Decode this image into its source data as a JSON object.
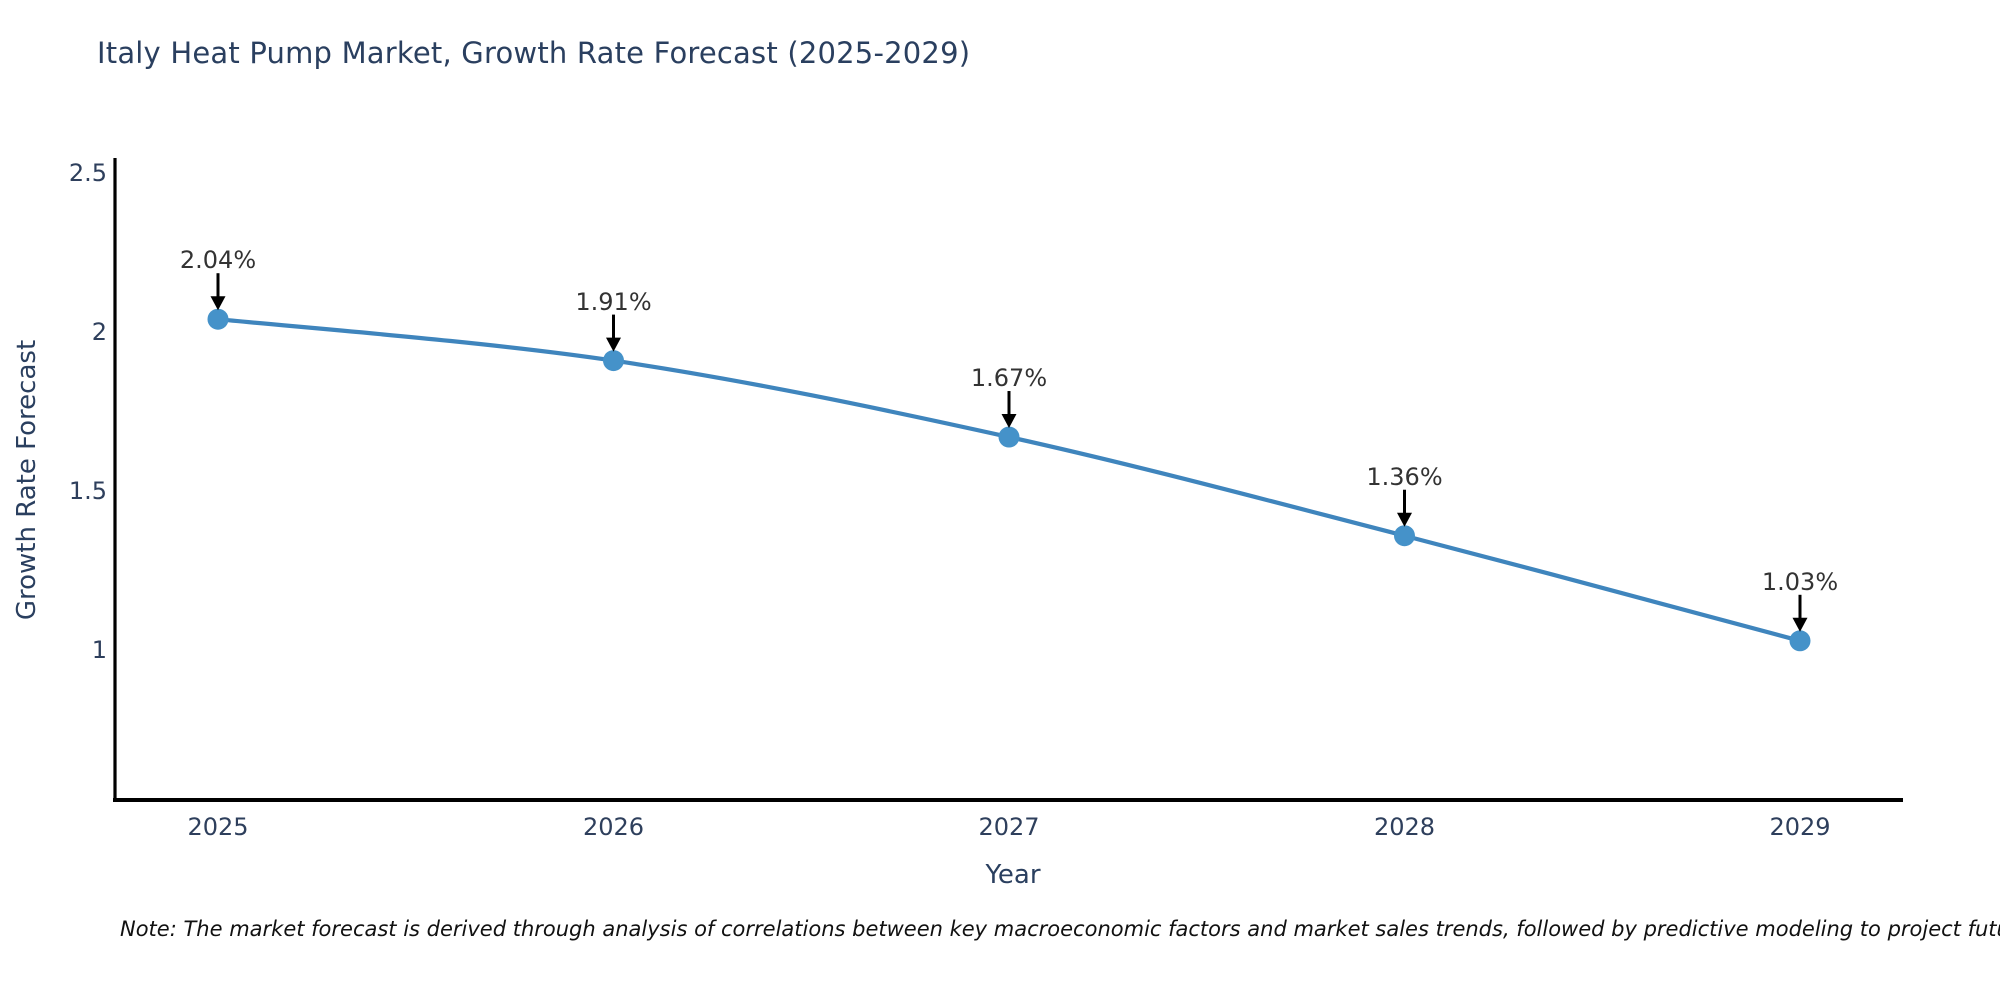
{
  "page": {
    "background": "#ffffff"
  },
  "chart_data": {
    "type": "line",
    "title": "Italy Heat Pump Market, Growth Rate Forecast (2025-2029)",
    "xlabel": "Year",
    "ylabel": "Growth Rate Forecast",
    "categories": [
      "2025",
      "2026",
      "2027",
      "2028",
      "2029"
    ],
    "values": [
      2.04,
      1.91,
      1.67,
      1.36,
      1.03
    ],
    "point_labels": [
      "2.04%",
      "1.91%",
      "1.67%",
      "1.36%",
      "1.03%"
    ],
    "ytick_labels": [
      "2.5",
      "2",
      "1.5",
      "1"
    ],
    "yticks": [
      2.5,
      2.0,
      1.5,
      1.0
    ],
    "ylim": [
      0.53,
      2.54
    ],
    "grid": false,
    "legend": false,
    "line_color": "#3f85bd",
    "marker_color": "#4592c9",
    "axis_color": "#000000",
    "label_color": "#2a3f5f",
    "annotation_text_color": "#333333",
    "annotation_arrow_color": "#000000"
  },
  "note": "Note: The market forecast is derived through analysis of correlations between key macroeconomic factors and market sales trends, followed by predictive modeling to project future sales"
}
